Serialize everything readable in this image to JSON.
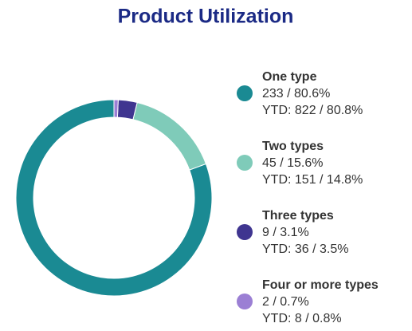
{
  "chart_data": {
    "type": "donut",
    "title": "Product Utilization",
    "categories": [
      "One type",
      "Two types",
      "Three types",
      "Four or more types"
    ],
    "values": [
      233,
      45,
      9,
      2
    ],
    "value_labels": [
      "233 / 80.6%",
      "45 / 15.6%",
      "9 / 3.1%",
      "2 / 0.7%"
    ],
    "ytd_labels": [
      "YTD: 822 / 80.8%",
      "YTD: 151 / 14.8%",
      "YTD: 36 / 3.5%",
      "YTD: 8 / 0.8%"
    ],
    "colors": [
      "#1a8a93",
      "#7fcbb9",
      "#3f3590",
      "#9b7fd4"
    ]
  }
}
